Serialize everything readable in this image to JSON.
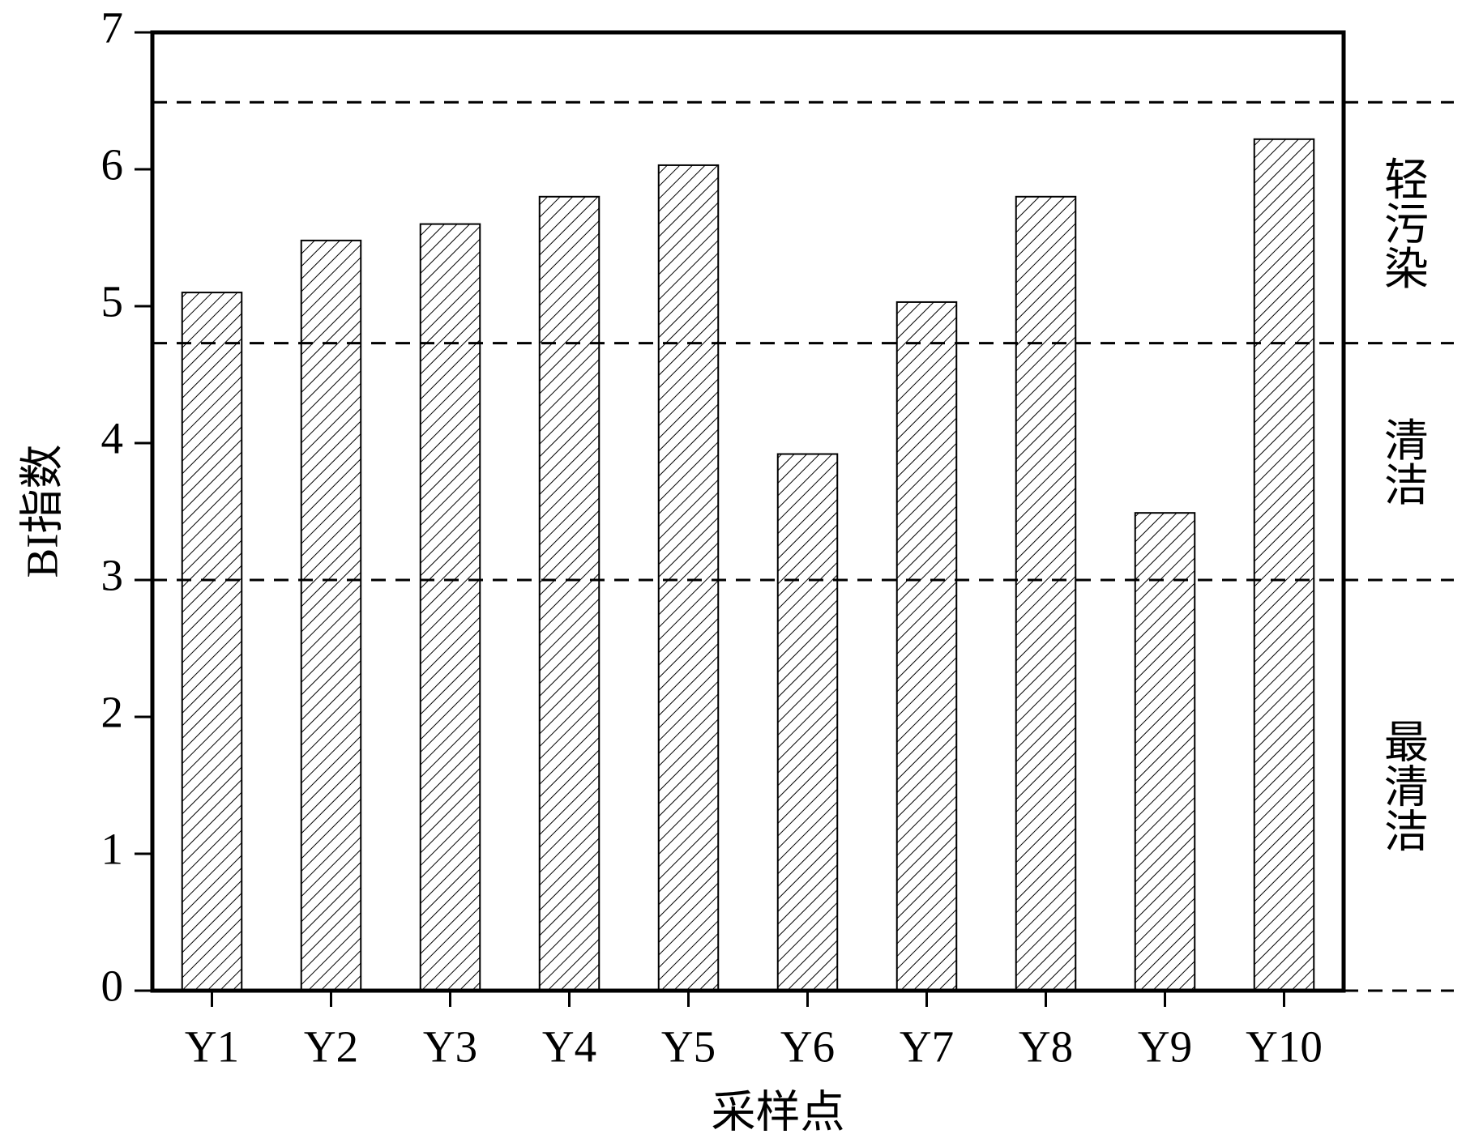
{
  "chart_data": {
    "type": "bar",
    "x_label": "采样点",
    "y_label": "BI指数",
    "categories": [
      "Y1",
      "Y2",
      "Y3",
      "Y4",
      "Y5",
      "Y6",
      "Y7",
      "Y8",
      "Y9",
      "Y10"
    ],
    "values": [
      5.1,
      5.48,
      5.6,
      5.8,
      6.03,
      3.92,
      5.03,
      5.8,
      3.49,
      6.22
    ],
    "color": "#000000",
    "ylim": [
      0,
      7
    ],
    "yticks": [
      0,
      1,
      2,
      3,
      4,
      5,
      6,
      7
    ],
    "thresholds": [
      0,
      3,
      4.73,
      6.49
    ],
    "zones": [
      "最清洁",
      "清洁",
      "轻污染"
    ]
  }
}
